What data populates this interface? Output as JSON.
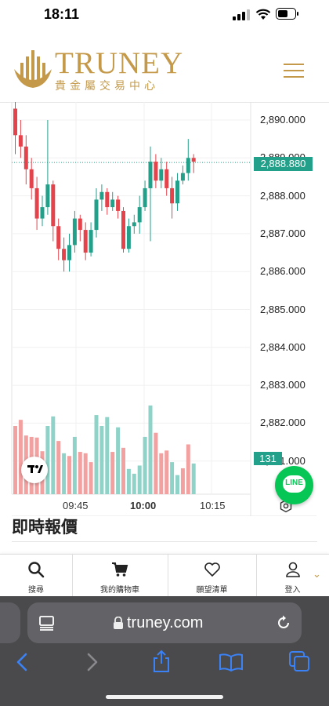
{
  "status_bar": {
    "time": "18:11"
  },
  "header": {
    "brand": "TRUNEY",
    "subtitle": "貴金屬交易中心"
  },
  "chart": {
    "current_price": "2,888.880",
    "volume_badge": "131",
    "time_labels": [
      "09:45",
      "10:00",
      "10:15"
    ],
    "colors": {
      "up": "#22a08a",
      "down": "#e4434b",
      "up_vol": "#8fd3c8",
      "down_vol": "#f3a0a0"
    }
  },
  "chart_data": {
    "type": "candlestick",
    "price_axis_ticks": [
      "2,890.000",
      "2,889.000",
      "2,888.000",
      "2,887.000",
      "2,886.000",
      "2,885.000",
      "2,884.000",
      "2,883.000",
      "2,882.000",
      "2,881.000"
    ],
    "x_ticks": [
      "09:45",
      "10:00",
      "10:15"
    ],
    "candles": [
      {
        "o": 2890.3,
        "c": 2889.6,
        "h": 2890.6,
        "l": 2889.1
      },
      {
        "o": 2889.6,
        "c": 2889.3,
        "h": 2890.0,
        "l": 2889.0
      },
      {
        "o": 2889.3,
        "c": 2888.7,
        "h": 2889.6,
        "l": 2888.3
      },
      {
        "o": 2888.7,
        "c": 2888.2,
        "h": 2889.0,
        "l": 2887.9
      },
      {
        "o": 2888.2,
        "c": 2887.4,
        "h": 2888.5,
        "l": 2887.1
      },
      {
        "o": 2887.4,
        "c": 2887.7,
        "h": 2888.0,
        "l": 2887.2
      },
      {
        "o": 2887.7,
        "c": 2888.3,
        "h": 2890.0,
        "l": 2887.5
      },
      {
        "o": 2888.3,
        "c": 2887.2,
        "h": 2888.4,
        "l": 2886.8
      },
      {
        "o": 2887.2,
        "c": 2886.6,
        "h": 2887.4,
        "l": 2886.3
      },
      {
        "o": 2886.6,
        "c": 2886.3,
        "h": 2886.9,
        "l": 2886.0
      },
      {
        "o": 2886.3,
        "c": 2886.7,
        "h": 2887.0,
        "l": 2886.0
      },
      {
        "o": 2886.7,
        "c": 2887.4,
        "h": 2887.6,
        "l": 2886.5
      },
      {
        "o": 2887.4,
        "c": 2887.1,
        "h": 2887.5,
        "l": 2886.8
      },
      {
        "o": 2887.1,
        "c": 2886.5,
        "h": 2887.3,
        "l": 2886.3
      },
      {
        "o": 2886.5,
        "c": 2887.1,
        "h": 2887.3,
        "l": 2886.4
      },
      {
        "o": 2887.1,
        "c": 2887.9,
        "h": 2888.2,
        "l": 2886.9
      },
      {
        "o": 2887.9,
        "c": 2888.1,
        "h": 2888.3,
        "l": 2887.6
      },
      {
        "o": 2888.1,
        "c": 2887.7,
        "h": 2888.2,
        "l": 2887.5
      },
      {
        "o": 2887.7,
        "c": 2887.9,
        "h": 2888.1,
        "l": 2887.6
      },
      {
        "o": 2887.9,
        "c": 2887.6,
        "h": 2888.0,
        "l": 2887.4
      },
      {
        "o": 2887.6,
        "c": 2886.6,
        "h": 2887.7,
        "l": 2886.5
      },
      {
        "o": 2886.6,
        "c": 2887.2,
        "h": 2887.4,
        "l": 2886.5
      },
      {
        "o": 2887.2,
        "c": 2887.3,
        "h": 2887.5,
        "l": 2887.0
      },
      {
        "o": 2887.3,
        "c": 2887.7,
        "h": 2888.0,
        "l": 2887.0
      },
      {
        "o": 2887.7,
        "c": 2888.2,
        "h": 2888.4,
        "l": 2887.6
      },
      {
        "o": 2888.2,
        "c": 2888.9,
        "h": 2889.3,
        "l": 2886.8
      },
      {
        "o": 2888.9,
        "c": 2888.4,
        "h": 2889.1,
        "l": 2888.2
      },
      {
        "o": 2888.4,
        "c": 2888.7,
        "h": 2889.0,
        "l": 2888.2
      },
      {
        "o": 2888.7,
        "c": 2888.2,
        "h": 2888.9,
        "l": 2888.0
      },
      {
        "o": 2888.2,
        "c": 2887.8,
        "h": 2888.5,
        "l": 2887.4
      },
      {
        "o": 2887.8,
        "c": 2888.4,
        "h": 2888.6,
        "l": 2887.6
      },
      {
        "o": 2888.4,
        "c": 2888.6,
        "h": 2888.8,
        "l": 2888.3
      },
      {
        "o": 2888.6,
        "c": 2889.0,
        "h": 2889.5,
        "l": 2888.4
      },
      {
        "o": 2889.0,
        "c": 2888.9,
        "h": 2889.1,
        "l": 2888.6
      }
    ],
    "volume": [
      {
        "v": 100,
        "d": 1
      },
      {
        "v": 109,
        "d": 1
      },
      {
        "v": 86,
        "d": 1
      },
      {
        "v": 84,
        "d": 1
      },
      {
        "v": 83,
        "d": 1
      },
      {
        "v": 63,
        "d": 1
      },
      {
        "v": 100,
        "d": 0
      },
      {
        "v": 114,
        "d": 0
      },
      {
        "v": 78,
        "d": 1
      },
      {
        "v": 60,
        "d": 0
      },
      {
        "v": 56,
        "d": 1
      },
      {
        "v": 84,
        "d": 0
      },
      {
        "v": 62,
        "d": 1
      },
      {
        "v": 60,
        "d": 1
      },
      {
        "v": 47,
        "d": 1
      },
      {
        "v": 116,
        "d": 0
      },
      {
        "v": 100,
        "d": 0
      },
      {
        "v": 113,
        "d": 0
      },
      {
        "v": 62,
        "d": 1
      },
      {
        "v": 98,
        "d": 0
      },
      {
        "v": 68,
        "d": 1
      },
      {
        "v": 37,
        "d": 0
      },
      {
        "v": 30,
        "d": 0
      },
      {
        "v": 42,
        "d": 0
      },
      {
        "v": 84,
        "d": 0
      },
      {
        "v": 130,
        "d": 0
      },
      {
        "v": 90,
        "d": 1
      },
      {
        "v": 60,
        "d": 1
      },
      {
        "v": 64,
        "d": 1
      },
      {
        "v": 47,
        "d": 0
      },
      {
        "v": 28,
        "d": 0
      },
      {
        "v": 38,
        "d": 1
      },
      {
        "v": 73,
        "d": 1
      },
      {
        "v": 45,
        "d": 0
      }
    ]
  },
  "section": {
    "title": "即時報價"
  },
  "bottom_nav": [
    {
      "label": "搜尋",
      "icon": "search-icon"
    },
    {
      "label": "我的購物車",
      "icon": "cart-icon"
    },
    {
      "label": "願望清單",
      "icon": "heart-icon"
    },
    {
      "label": "登入",
      "icon": "user-icon"
    }
  ],
  "safari": {
    "url": "truney.com"
  }
}
